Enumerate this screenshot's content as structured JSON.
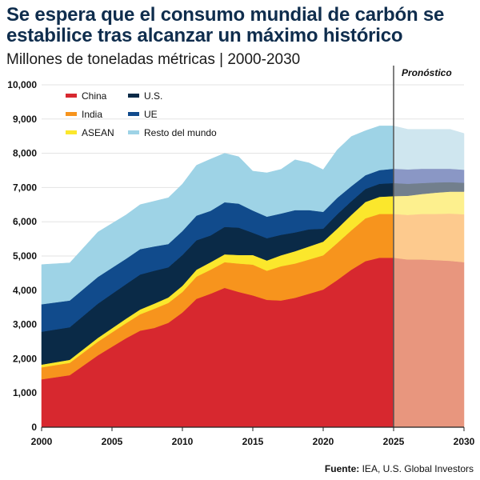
{
  "title": "Se espera que el consumo mundial de carbón se estabilice tras alcanzar un máximo histórico",
  "subtitle": "Millones de toneladas métricas | 2000-2030",
  "source": {
    "label": "Fuente:",
    "text": " IEA, U.S. Global Investors"
  },
  "chart_data": {
    "type": "area",
    "stacked": true,
    "forecast_label": "Pronóstico",
    "forecast_start": 2025,
    "xlim": [
      2000,
      2030
    ],
    "ylim": [
      0,
      10000
    ],
    "x_ticks": [
      2000,
      2005,
      2010,
      2015,
      2020,
      2025,
      2030
    ],
    "y_ticks": [
      0,
      1000,
      2000,
      3000,
      4000,
      5000,
      6000,
      7000,
      8000,
      9000,
      10000
    ],
    "y_tick_labels": [
      "0",
      "1,000",
      "2,000",
      "3,000",
      "4,000",
      "5,000",
      "6,000",
      "7,000",
      "8,000",
      "9,000",
      "10,000"
    ],
    "x": [
      2000,
      2002,
      2004,
      2006,
      2007,
      2008,
      2009,
      2010,
      2011,
      2012,
      2013,
      2014,
      2015,
      2016,
      2017,
      2018,
      2019,
      2020,
      2021,
      2022,
      2023,
      2024,
      2025,
      2026,
      2027,
      2028,
      2029,
      2030
    ],
    "series": [
      {
        "name": "China",
        "color": "#d7282f",
        "forecast_color": "#e8967e",
        "values": [
          1400,
          1520,
          2100,
          2600,
          2820,
          2900,
          3050,
          3350,
          3750,
          3900,
          4070,
          3950,
          3850,
          3720,
          3700,
          3780,
          3900,
          4020,
          4300,
          4600,
          4850,
          4950,
          4950,
          4900,
          4900,
          4880,
          4860,
          4820
        ]
      },
      {
        "name": "India",
        "color": "#f7941d",
        "forecast_color": "#fdca8e",
        "values": [
          350,
          360,
          400,
          440,
          480,
          560,
          580,
          600,
          650,
          700,
          750,
          830,
          900,
          850,
          1000,
          1000,
          1000,
          1000,
          1080,
          1150,
          1250,
          1280,
          1280,
          1300,
          1330,
          1350,
          1380,
          1400
        ]
      },
      {
        "name": "ASEAN",
        "color": "#fbe72c",
        "forecast_color": "#fdf08e",
        "values": [
          80,
          90,
          110,
          130,
          140,
          150,
          160,
          180,
          200,
          220,
          230,
          250,
          280,
          300,
          320,
          360,
          380,
          400,
          420,
          450,
          480,
          500,
          520,
          560,
          580,
          620,
          640,
          660
        ]
      },
      {
        "name": "U.S.",
        "color": "#0a2a47",
        "forecast_color": "#727f8d",
        "values": [
          960,
          950,
          1000,
          1010,
          1020,
          960,
          880,
          900,
          860,
          780,
          800,
          800,
          650,
          650,
          600,
          550,
          500,
          380,
          420,
          400,
          380,
          380,
          380,
          350,
          320,
          300,
          280,
          260
        ]
      },
      {
        "name": "UE",
        "color": "#114b8c",
        "forecast_color": "#8a97c5",
        "values": [
          800,
          780,
          780,
          740,
          740,
          710,
          680,
          700,
          720,
          720,
          720,
          700,
          650,
          630,
          620,
          650,
          560,
          490,
          480,
          440,
          400,
          400,
          420,
          420,
          420,
          400,
          390,
          380
        ]
      },
      {
        "name": "Resto del mundo",
        "color": "#9ed3e6",
        "forecast_color": "#cfe6ef",
        "values": [
          1160,
          1100,
          1310,
          1280,
          1300,
          1320,
          1350,
          1370,
          1470,
          1510,
          1430,
          1370,
          1150,
          1280,
          1290,
          1470,
          1380,
          1230,
          1400,
          1450,
          1300,
          1290,
          1250,
          1170,
          1150,
          1150,
          1150,
          1060
        ]
      }
    ],
    "legend": [
      {
        "name": "China",
        "color": "#d7282f"
      },
      {
        "name": "U.S.",
        "color": "#0a2a47"
      },
      {
        "name": "India",
        "color": "#f7941d"
      },
      {
        "name": "UE",
        "color": "#114b8c"
      },
      {
        "name": "ASEAN",
        "color": "#fbe72c"
      },
      {
        "name": "Resto del mundo",
        "color": "#9ed3e6"
      }
    ]
  }
}
